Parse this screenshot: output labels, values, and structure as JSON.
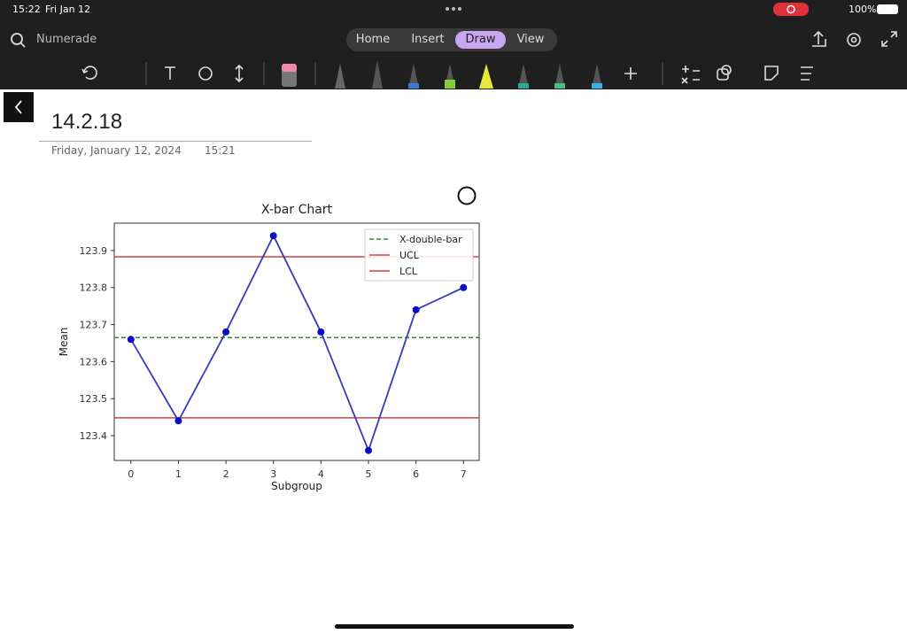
{
  "status": {
    "time": "15:22",
    "date": "Fri Jan 12",
    "battery": "100%"
  },
  "app": {
    "search": "Numerade",
    "tabs": [
      "Home",
      "Insert",
      "Draw",
      "View"
    ]
  },
  "page": {
    "title": "14.2.18",
    "date": "Friday, January 12, 2024",
    "time": "15:21"
  },
  "chart_data": {
    "type": "line",
    "title": "X-bar Chart",
    "xlabel": "Subgroup",
    "ylabel": "Mean",
    "x": [
      0,
      1,
      2,
      3,
      4,
      5,
      6,
      7
    ],
    "series": [
      {
        "color": "#3a3ab8",
        "marker_color": "#0a0acc",
        "values": [
          123.66,
          123.44,
          123.68,
          123.94,
          123.68,
          123.36,
          123.74,
          123.8
        ]
      }
    ],
    "hlines": [
      {
        "name": "X-double-bar",
        "value": 123.665,
        "color": "#2e8b2e",
        "style": "dashed"
      },
      {
        "name": "UCL",
        "value": 123.883,
        "color": "#d0404a",
        "style": "solid"
      },
      {
        "name": "LCL",
        "value": 123.448,
        "color": "#d0404a",
        "style": "solid"
      }
    ],
    "xlim": [
      -0.35,
      7.33
    ],
    "ylim": [
      123.333,
      123.974
    ],
    "xticks": [
      0,
      1,
      2,
      3,
      4,
      5,
      6,
      7
    ],
    "yticks": [
      123.4,
      123.5,
      123.6,
      123.7,
      123.8,
      123.9
    ],
    "legend": "upper right"
  }
}
